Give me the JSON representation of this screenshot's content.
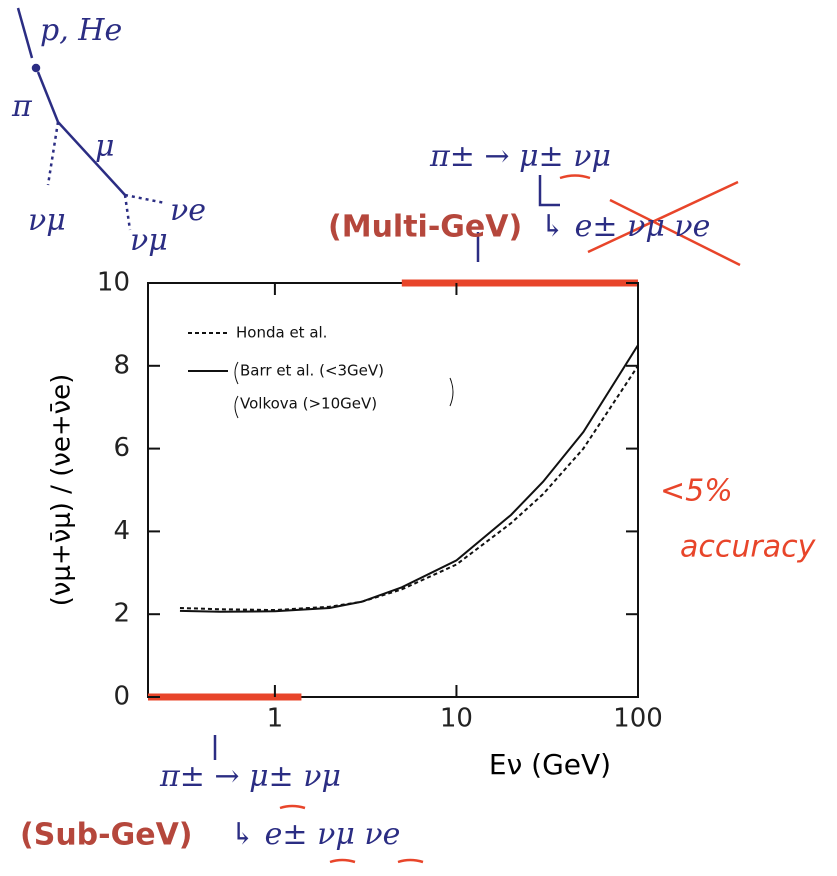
{
  "chart_data": {
    "type": "line",
    "log_x": true,
    "x_label": "Eν (GeV)",
    "y_label": "(νμ+ν̄μ) / (νe+ν̄e)",
    "x": [
      0.3,
      0.5,
      1,
      2,
      3,
      5,
      10,
      20,
      30,
      50,
      100
    ],
    "series": [
      {
        "name": "Honda et al.",
        "dash": true,
        "color": "#111",
        "values": [
          2.15,
          2.12,
          2.1,
          2.18,
          2.3,
          2.6,
          3.2,
          4.2,
          4.9,
          6.0,
          8.0
        ]
      },
      {
        "name": "Barr et al. (<3GeV)",
        "name2": "Volkova (>10GeV)",
        "dash": false,
        "color": "#111",
        "values": [
          2.08,
          2.06,
          2.07,
          2.15,
          2.3,
          2.65,
          3.3,
          4.4,
          5.2,
          6.4,
          8.5
        ]
      }
    ],
    "xlim": [
      0.2,
      100
    ],
    "xticks": [
      1,
      10,
      100
    ],
    "ylim": [
      0,
      10
    ],
    "yticks": [
      0,
      2,
      4,
      6,
      8,
      10
    ],
    "highlights": [
      {
        "label": "(Sub-GeV)",
        "range": [
          0.2,
          1.4
        ],
        "color": "#e8452a"
      },
      {
        "label": "(Multi-GeV)",
        "range": [
          5,
          100
        ],
        "color": "#e8452a"
      }
    ],
    "annotations": [
      "p, He",
      "π",
      "μ",
      "νμ",
      "νe",
      "νμ",
      "π± → μ± νμ",
      "↳ e± νμ νe",
      "<5%",
      "accuracy",
      "π± → μ± νμ",
      "↳ e± νμ νe"
    ]
  }
}
